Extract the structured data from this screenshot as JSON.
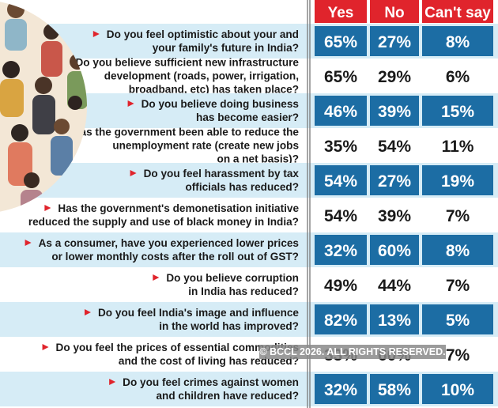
{
  "chart_data": {
    "type": "table",
    "columns": [
      "Yes",
      "No",
      "Can't say"
    ],
    "rows": [
      {
        "question": [
          "Do you feel optimistic about your and",
          "your family's future in India?"
        ],
        "yes": "65%",
        "no": "27%",
        "cant_say": "8%"
      },
      {
        "question": [
          "Do you believe sufficient new infrastructure",
          "development (roads, power, irrigation,",
          "broadband, etc) has taken place?"
        ],
        "yes": "65%",
        "no": "29%",
        "cant_say": "6%"
      },
      {
        "question": [
          "Do you believe doing business",
          "has become easier?"
        ],
        "yes": "46%",
        "no": "39%",
        "cant_say": "15%"
      },
      {
        "question": [
          "Has the government been able to reduce the",
          "unemployment rate (create new jobs",
          "on a net basis)?"
        ],
        "yes": "35%",
        "no": "54%",
        "cant_say": "11%"
      },
      {
        "question": [
          "Do you feel harassment by tax",
          "officials has reduced?"
        ],
        "yes": "54%",
        "no": "27%",
        "cant_say": "19%"
      },
      {
        "question": [
          "Has the government's demonetisation initiative",
          "reduced the supply and use of black money in India?"
        ],
        "yes": "54%",
        "no": "39%",
        "cant_say": "7%"
      },
      {
        "question": [
          "As a consumer, have you experienced lower prices",
          "or lower monthly costs after the roll out of GST?"
        ],
        "yes": "32%",
        "no": "60%",
        "cant_say": "8%"
      },
      {
        "question": [
          "Do you believe corruption",
          "in India has reduced?"
        ],
        "yes": "49%",
        "no": "44%",
        "cant_say": "7%"
      },
      {
        "question": [
          "Do you feel India's image and influence",
          "in the world has improved?"
        ],
        "yes": "82%",
        "no": "13%",
        "cant_say": "5%"
      },
      {
        "question": [
          "Do you feel the prices of essential commodities",
          "and the cost of living has reduced?"
        ],
        "yes": "33%",
        "no": "60%",
        "cant_say": "7%"
      },
      {
        "question": [
          "Do you feel crimes against women",
          "and children have reduced?"
        ],
        "yes": "32%",
        "no": "58%",
        "cant_say": "10%"
      }
    ]
  },
  "watermark": "© BCCL 2026. ALL RIGHTS RESERVED.",
  "colors": {
    "header_red": "#e0242c",
    "cell_blue": "#1c6da4",
    "shaded_row": "#d6ecf6",
    "plain_row": "#ffffff",
    "question_bullet": "#e0242c",
    "text_dark": "#1a1a1a"
  }
}
